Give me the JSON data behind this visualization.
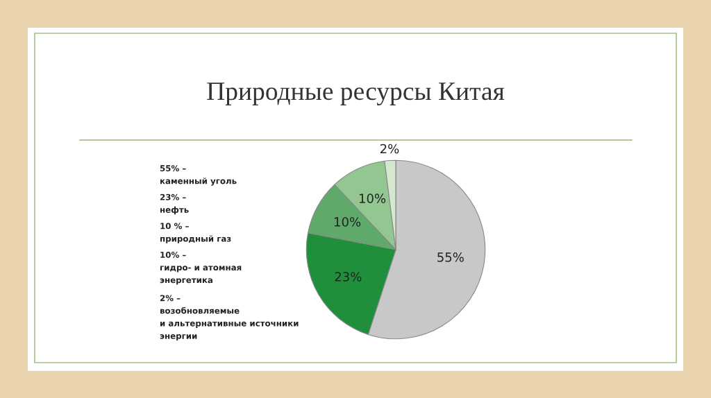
{
  "chart_data": {
    "type": "pie",
    "title": "Природные ресурсы Китая",
    "categories": [
      null,
      null,
      null,
      null,
      null
    ],
    "values": [
      55,
      23,
      10,
      10,
      2
    ],
    "colors": [
      "#c8c8c8",
      "#1f8f3c",
      "#5fa96a",
      "#92c792",
      "#d3e8cf"
    ],
    "value_labels": [
      "55%",
      "23%",
      "10%",
      "10%",
      "2%"
    ],
    "annotations": [
      "55% –\nкаменный уголь",
      "23% –\nнефть",
      "10 % –\nприродный газ",
      "10% –\nгидро- и атомная\nэнергетика",
      "2% –\nвозобновляемые\nи альтернативные источники\nэнергии"
    ]
  }
}
